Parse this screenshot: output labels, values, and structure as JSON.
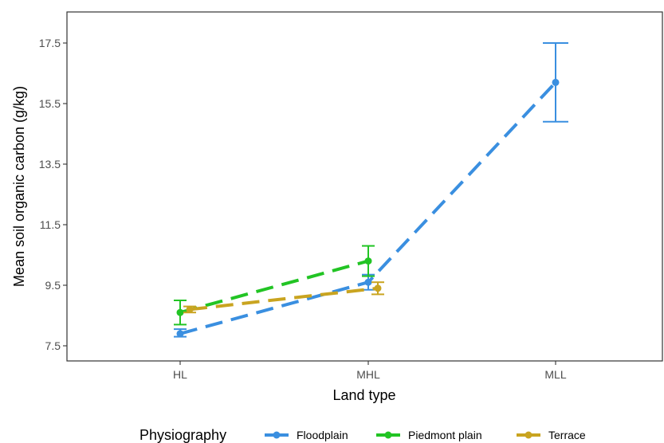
{
  "chart_data": {
    "type": "line",
    "categories": [
      "HL",
      "MHL",
      "MLL"
    ],
    "xlabel": "Land type",
    "ylabel": "Mean soil organic carbon (g/kg)",
    "ylim": [
      7.0,
      18.5
    ],
    "yticks": [
      7.5,
      9.5,
      11.5,
      13.5,
      15.5,
      17.5
    ],
    "ytick_labels": [
      "7.5",
      "9.5",
      "11.5",
      "13.5",
      "15.5",
      "17.5"
    ],
    "grid": false,
    "legend": {
      "title": "Physiography",
      "position": "bottom",
      "entries": [
        "Floodplain",
        "Piedmont plain",
        "Terrace"
      ]
    },
    "series": [
      {
        "name": "Floodplain",
        "color": "#3a8fe0",
        "points": [
          {
            "x": "HL",
            "y": 7.9,
            "lo": 7.8,
            "hi": 8.05
          },
          {
            "x": "MHL",
            "y": 9.6,
            "lo": 9.35,
            "hi": 9.85
          },
          {
            "x": "MLL",
            "y": 16.2,
            "lo": 14.9,
            "hi": 17.5
          }
        ]
      },
      {
        "name": "Piedmont plain",
        "color": "#22c424",
        "points": [
          {
            "x": "HL",
            "y": 8.6,
            "lo": 8.2,
            "hi": 9.0
          },
          {
            "x": "MHL",
            "y": 10.3,
            "lo": 9.8,
            "hi": 10.8
          }
        ]
      },
      {
        "name": "Terrace",
        "color": "#c9a420",
        "points": [
          {
            "x": "HL",
            "y": 8.7,
            "lo": 8.6,
            "hi": 8.8
          },
          {
            "x": "MHL",
            "y": 9.4,
            "lo": 9.2,
            "hi": 9.6
          }
        ]
      }
    ]
  }
}
